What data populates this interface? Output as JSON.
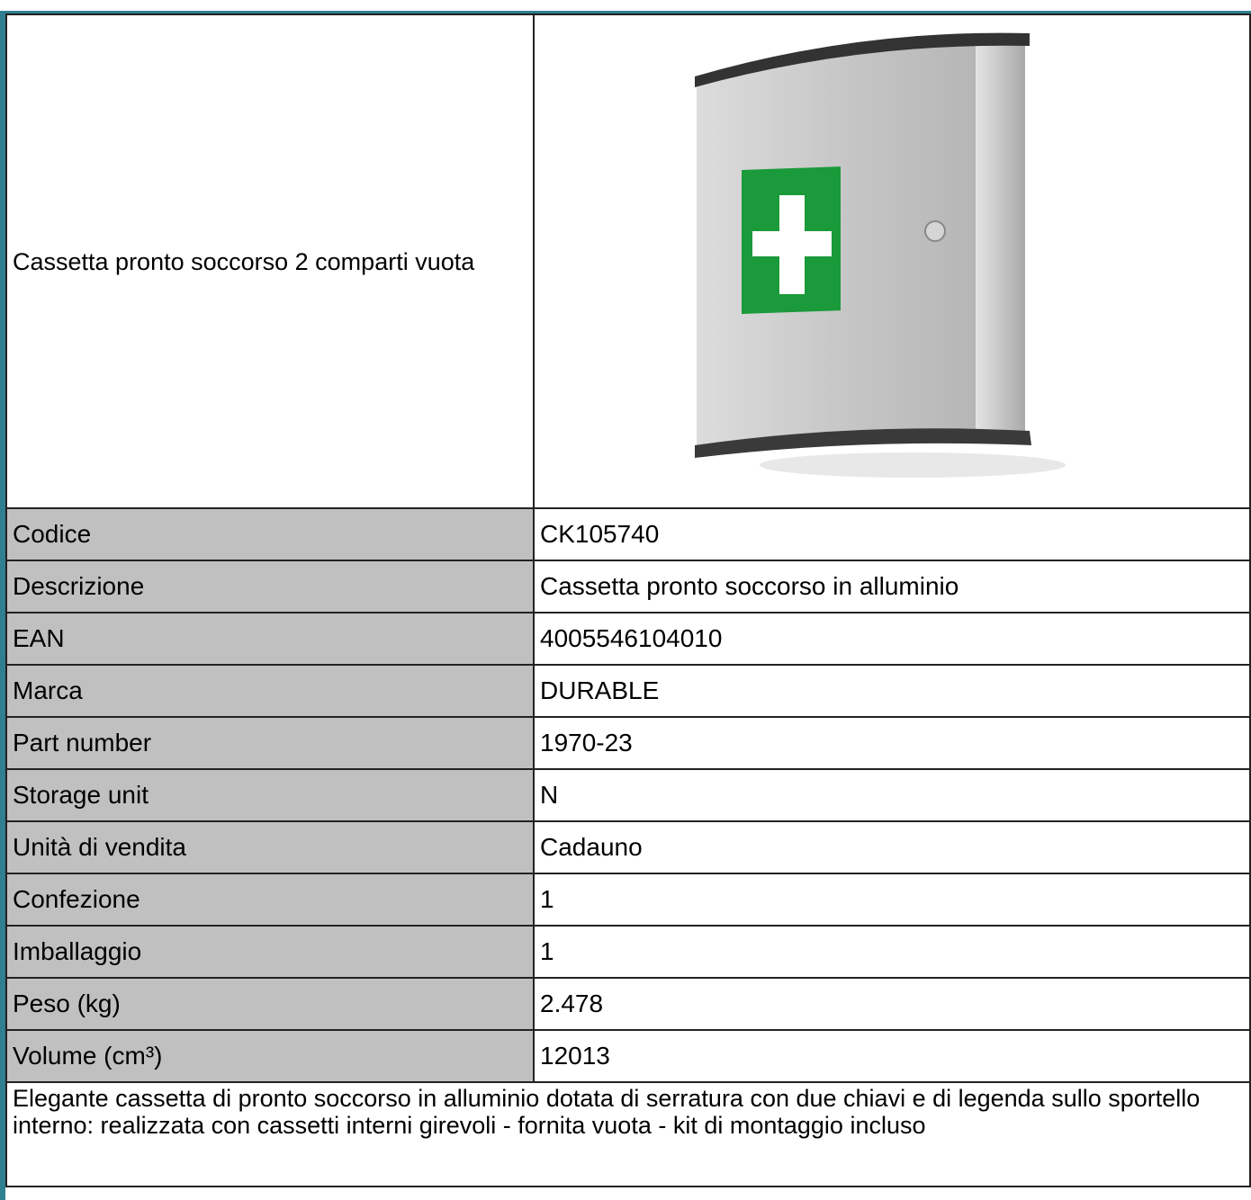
{
  "header": {
    "title": "Cassetta pronto soccorso 2 comparti vuota"
  },
  "table": {
    "rows": [
      [
        "Codice",
        "CK105740"
      ],
      [
        "Descrizione",
        "Cassetta pronto soccorso in alluminio"
      ],
      [
        "EAN",
        "4005546104010"
      ],
      [
        "Marca",
        "DURABLE"
      ],
      [
        "Part number",
        "1970-23"
      ],
      [
        "Storage unit",
        "N"
      ],
      [
        "Unità di vendita",
        "Cadauno"
      ],
      [
        "Confezione",
        "1"
      ],
      [
        "Imballaggio",
        "1"
      ],
      [
        "Peso (kg)",
        "2.478"
      ],
      [
        "Volume (cm³)",
        "12013"
      ]
    ]
  },
  "description": "Elegante cassetta di pronto soccorso in alluminio dotata di serratura con due chiavi e di legenda sullo sportello interno: realizzata con cassetti interni girevoli - fornita vuota - kit di montaggio incluso"
}
